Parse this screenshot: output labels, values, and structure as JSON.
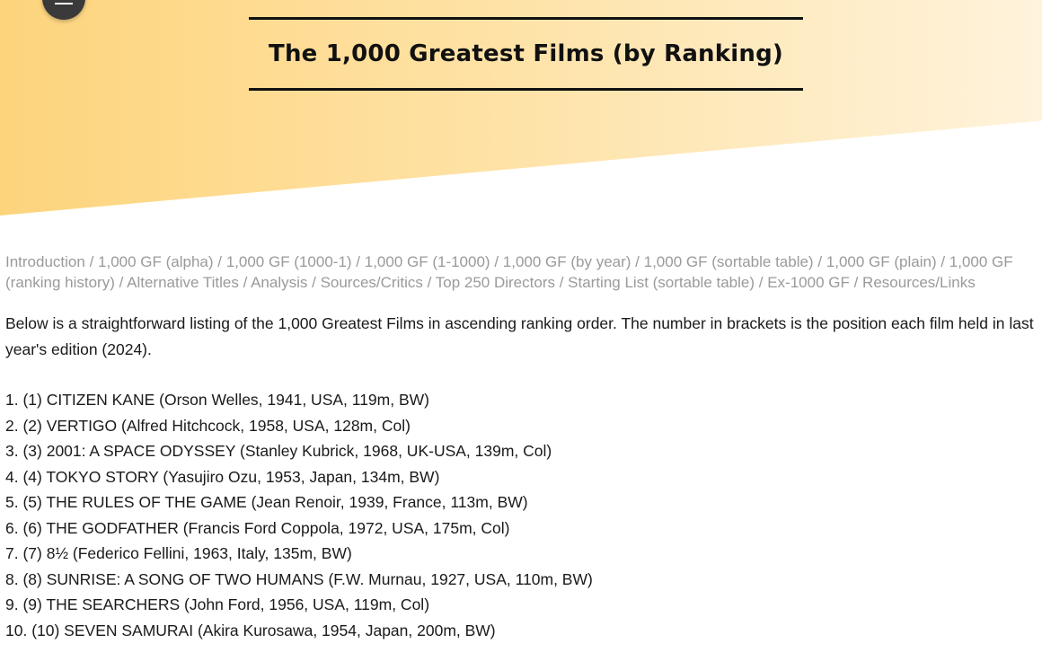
{
  "header": {
    "title": "The 1,000 Greatest Films (by Ranking)",
    "menu_icon": "hamburger-menu-icon"
  },
  "nav": {
    "separator": " / ",
    "links": [
      "Introduction",
      "1,000 GF (alpha)",
      "1,000 GF (1000-1)",
      "1,000 GF (1-1000)",
      "1,000 GF (by year)",
      "1,000 GF (sortable table)",
      "1,000 GF (plain)",
      "1,000 GF (ranking history)",
      "Alternative Titles",
      "Analysis",
      "Sources/Critics",
      "Top 250 Directors",
      "Starting List (sortable table)",
      "Ex-1000 GF",
      "Resources/Links"
    ]
  },
  "intro": {
    "text": "Below is a straightforward listing of the 1,000 Greatest Films in ascending ranking order. The number in brackets is the position each film held in last year's edition (2024)."
  },
  "films": [
    "1. (1) CITIZEN KANE (Orson Welles, 1941, USA, 119m, BW)",
    "2. (2) VERTIGO (Alfred Hitchcock, 1958, USA, 128m, Col)",
    "3. (3) 2001: A SPACE ODYSSEY (Stanley Kubrick, 1968, UK-USA, 139m, Col)",
    "4. (4) TOKYO STORY (Yasujiro Ozu, 1953, Japan, 134m, BW)",
    "5. (5) THE RULES OF THE GAME (Jean Renoir, 1939, France, 113m, BW)",
    "6. (6) THE GODFATHER (Francis Ford Coppola, 1972, USA, 175m, Col)",
    "7. (7) 8½ (Federico Fellini, 1963, Italy, 135m, BW)",
    "8. (8) SUNRISE: A SONG OF TWO HUMANS (F.W. Murnau, 1927, USA, 110m, BW)",
    "9. (9) THE SEARCHERS (John Ford, 1956, USA, 119m, Col)",
    "10. (10) SEVEN SAMURAI (Akira Kurosawa, 1954, Japan, 200m, BW)"
  ],
  "colors": {
    "hero_start": "#fdd47c",
    "hero_end": "#fff3dc",
    "nav_link": "#9a9a9a",
    "text": "#1a1a1a",
    "title_rule": "#111111",
    "menu_button": "#3a3a3a"
  }
}
